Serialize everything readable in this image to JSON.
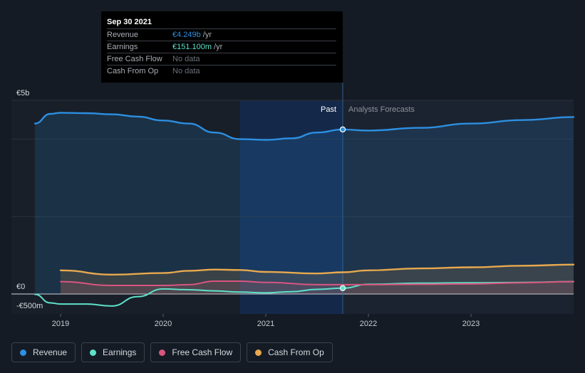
{
  "tooltip": {
    "date": "Sep 30 2021",
    "rows": [
      {
        "name": "Revenue",
        "value": "€4.249b",
        "unit": "/yr",
        "color": "#2d8fe0"
      },
      {
        "name": "Earnings",
        "value": "€151.100m",
        "unit": "/yr",
        "color": "#5ee1c9"
      },
      {
        "name": "Free Cash Flow",
        "value": "No data",
        "unit": "",
        "color": ""
      },
      {
        "name": "Cash From Op",
        "value": "No data",
        "unit": "",
        "color": ""
      }
    ]
  },
  "labels": {
    "past": "Past",
    "forecast": "Analysts Forecasts"
  },
  "legend": [
    {
      "label": "Revenue",
      "color": "#2d8fe0"
    },
    {
      "label": "Earnings",
      "color": "#5ee1c9"
    },
    {
      "label": "Free Cash Flow",
      "color": "#d9557f"
    },
    {
      "label": "Cash From Op",
      "color": "#e8a94f"
    }
  ],
  "chart_data": {
    "type": "area",
    "y_tick_labels": [
      "€5b",
      "€0",
      "-€500m"
    ],
    "x_tick_labels": [
      "2019",
      "2020",
      "2021",
      "2022",
      "2023"
    ],
    "ylim": [
      -500,
      5000
    ],
    "xlim": [
      2018.75,
      2024.0
    ],
    "present_x": 2021.75,
    "highlight_range": [
      2020.75,
      2021.75
    ],
    "series": [
      {
        "name": "Revenue",
        "color": "#2d8fe0",
        "fill": true,
        "points": [
          [
            2018.75,
            4400
          ],
          [
            2018.9,
            4650
          ],
          [
            2019.0,
            4680
          ],
          [
            2019.25,
            4670
          ],
          [
            2019.5,
            4640
          ],
          [
            2019.75,
            4580
          ],
          [
            2020.0,
            4480
          ],
          [
            2020.25,
            4400
          ],
          [
            2020.5,
            4170
          ],
          [
            2020.75,
            4000
          ],
          [
            2021.0,
            3980
          ],
          [
            2021.25,
            4020
          ],
          [
            2021.5,
            4170
          ],
          [
            2021.75,
            4249
          ],
          [
            2022.0,
            4220
          ],
          [
            2022.5,
            4290
          ],
          [
            2023.0,
            4400
          ],
          [
            2023.5,
            4490
          ],
          [
            2024.0,
            4570
          ]
        ]
      },
      {
        "name": "Earnings",
        "color": "#5ee1c9",
        "fill": false,
        "points": [
          [
            2018.75,
            -10
          ],
          [
            2018.9,
            -230
          ],
          [
            2019.0,
            -260
          ],
          [
            2019.25,
            -260
          ],
          [
            2019.5,
            -310
          ],
          [
            2019.75,
            -70
          ],
          [
            2020.0,
            130
          ],
          [
            2020.25,
            110
          ],
          [
            2020.5,
            80
          ],
          [
            2020.75,
            50
          ],
          [
            2021.0,
            30
          ],
          [
            2021.25,
            60
          ],
          [
            2021.5,
            120
          ],
          [
            2021.75,
            151
          ],
          [
            2022.0,
            250
          ],
          [
            2022.5,
            280
          ],
          [
            2023.0,
            290
          ],
          [
            2023.5,
            300
          ],
          [
            2024.0,
            320
          ]
        ]
      },
      {
        "name": "Free Cash Flow",
        "color": "#d9557f",
        "fill": true,
        "points": [
          [
            2019.0,
            320
          ],
          [
            2019.5,
            220
          ],
          [
            2020.0,
            220
          ],
          [
            2020.25,
            240
          ],
          [
            2020.5,
            330
          ],
          [
            2020.75,
            330
          ],
          [
            2021.0,
            300
          ],
          [
            2021.5,
            240
          ],
          [
            2021.75,
            240
          ],
          [
            2022.0,
            240
          ],
          [
            2022.5,
            250
          ],
          [
            2023.0,
            260
          ],
          [
            2023.5,
            290
          ],
          [
            2024.0,
            320
          ]
        ]
      },
      {
        "name": "Cash From Op",
        "color": "#e8a94f",
        "fill": true,
        "points": [
          [
            2019.0,
            610
          ],
          [
            2019.5,
            500
          ],
          [
            2020.0,
            540
          ],
          [
            2020.25,
            600
          ],
          [
            2020.5,
            630
          ],
          [
            2020.75,
            620
          ],
          [
            2021.0,
            570
          ],
          [
            2021.5,
            530
          ],
          [
            2021.75,
            560
          ],
          [
            2022.0,
            610
          ],
          [
            2022.5,
            660
          ],
          [
            2023.0,
            690
          ],
          [
            2023.5,
            730
          ],
          [
            2024.0,
            760
          ]
        ]
      }
    ]
  }
}
